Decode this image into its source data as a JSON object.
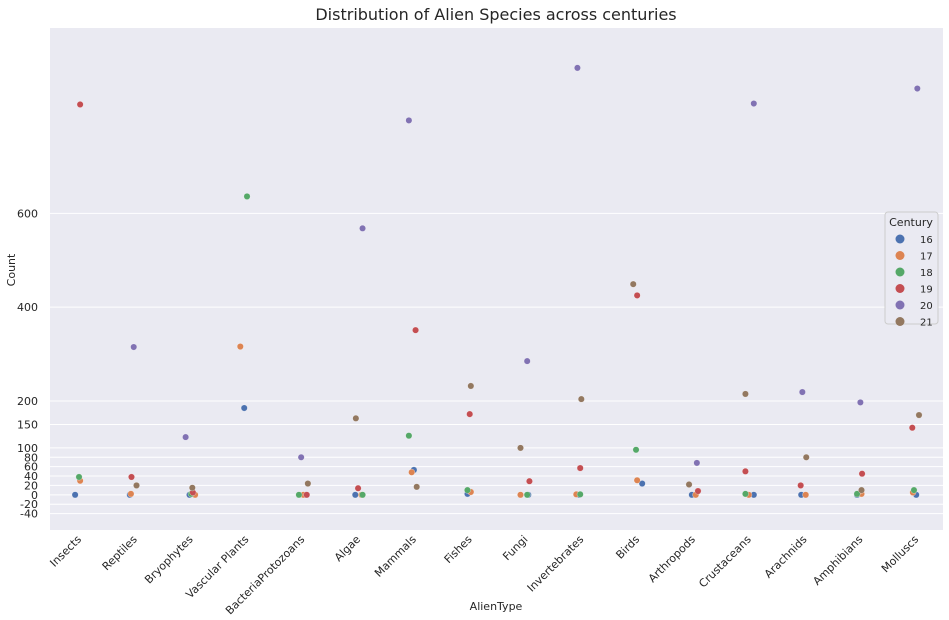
{
  "chart_data": {
    "type": "scatter",
    "title": "Distribution of Alien Species across centuries",
    "xlabel": "AlienType",
    "ylabel": "Count",
    "ylim": [
      -75,
      995
    ],
    "yticks": [
      -40,
      -20,
      0,
      20,
      40,
      60,
      80,
      100,
      150,
      200,
      400,
      600
    ],
    "grid": true,
    "categories": [
      "Insects",
      "Reptiles",
      "Bryophytes",
      "Vascular Plants",
      "BacteriaProtozoans",
      "Algae",
      "Mammals",
      "Fishes",
      "Fungi",
      "Invertebrates",
      "Birds",
      "Arthropods",
      "Crustaceans",
      "Arachnids",
      "Amphibians",
      "Molluscs"
    ],
    "legend": {
      "title": "Century",
      "placement": "right",
      "entries": [
        {
          "label": "16",
          "color": "#4c72b0"
        },
        {
          "label": "17",
          "color": "#dd8452"
        },
        {
          "label": "18",
          "color": "#55a868"
        },
        {
          "label": "19",
          "color": "#c44e52"
        },
        {
          "label": "20",
          "color": "#8172b3"
        },
        {
          "label": "21",
          "color": "#937860"
        }
      ]
    },
    "points": [
      {
        "cat": 0,
        "century": "16",
        "value": 0,
        "jitter": -0.05
      },
      {
        "cat": 0,
        "century": "17",
        "value": 30,
        "jitter": 0.04
      },
      {
        "cat": 0,
        "century": "18",
        "value": 38,
        "jitter": 0.02
      },
      {
        "cat": 0,
        "century": "19",
        "value": 832,
        "jitter": 0.04
      },
      {
        "cat": 1,
        "century": "16",
        "value": 0,
        "jitter": -0.07
      },
      {
        "cat": 1,
        "century": "17",
        "value": 2,
        "jitter": -0.05
      },
      {
        "cat": 1,
        "century": "19",
        "value": 38,
        "jitter": -0.04
      },
      {
        "cat": 1,
        "century": "20",
        "value": 315,
        "jitter": 0.0
      },
      {
        "cat": 1,
        "century": "21",
        "value": 20,
        "jitter": 0.05
      },
      {
        "cat": 2,
        "century": "16",
        "value": 0,
        "jitter": 0.0
      },
      {
        "cat": 2,
        "century": "17",
        "value": 0,
        "jitter": 0.1
      },
      {
        "cat": 2,
        "century": "18",
        "value": 2,
        "jitter": 0.03
      },
      {
        "cat": 2,
        "century": "19",
        "value": 5,
        "jitter": 0.06
      },
      {
        "cat": 2,
        "century": "20",
        "value": 123,
        "jitter": -0.07
      },
      {
        "cat": 2,
        "century": "21",
        "value": 15,
        "jitter": 0.05
      },
      {
        "cat": 3,
        "century": "16",
        "value": 185,
        "jitter": -0.02
      },
      {
        "cat": 3,
        "century": "17",
        "value": 316,
        "jitter": -0.09
      },
      {
        "cat": 3,
        "century": "18",
        "value": 636,
        "jitter": 0.03
      },
      {
        "cat": 4,
        "century": "16",
        "value": 0,
        "jitter": 0.08
      },
      {
        "cat": 4,
        "century": "17",
        "value": 0,
        "jitter": 0.04
      },
      {
        "cat": 4,
        "century": "18",
        "value": 0,
        "jitter": -0.04
      },
      {
        "cat": 4,
        "century": "19",
        "value": 0,
        "jitter": 0.1
      },
      {
        "cat": 4,
        "century": "20",
        "value": 80,
        "jitter": 0.0
      },
      {
        "cat": 4,
        "century": "21",
        "value": 24,
        "jitter": 0.12
      },
      {
        "cat": 5,
        "century": "16",
        "value": 0,
        "jitter": -0.03
      },
      {
        "cat": 5,
        "century": "17",
        "value": 0,
        "jitter": 0.08
      },
      {
        "cat": 5,
        "century": "18",
        "value": 0,
        "jitter": 0.1
      },
      {
        "cat": 5,
        "century": "19",
        "value": 14,
        "jitter": 0.02
      },
      {
        "cat": 5,
        "century": "20",
        "value": 568,
        "jitter": 0.1
      },
      {
        "cat": 5,
        "century": "21",
        "value": 163,
        "jitter": -0.02
      },
      {
        "cat": 6,
        "century": "16",
        "value": 53,
        "jitter": 0.02
      },
      {
        "cat": 6,
        "century": "17",
        "value": 48,
        "jitter": -0.02
      },
      {
        "cat": 6,
        "century": "18",
        "value": 126,
        "jitter": -0.07
      },
      {
        "cat": 6,
        "century": "19",
        "value": 351,
        "jitter": 0.05
      },
      {
        "cat": 6,
        "century": "20",
        "value": 798,
        "jitter": -0.07
      },
      {
        "cat": 6,
        "century": "21",
        "value": 17,
        "jitter": 0.07
      },
      {
        "cat": 7,
        "century": "16",
        "value": 2,
        "jitter": -0.02
      },
      {
        "cat": 7,
        "century": "17",
        "value": 6,
        "jitter": 0.04
      },
      {
        "cat": 7,
        "century": "18",
        "value": 10,
        "jitter": -0.02
      },
      {
        "cat": 7,
        "century": "19",
        "value": 172,
        "jitter": 0.02
      },
      {
        "cat": 7,
        "century": "21",
        "value": 232,
        "jitter": 0.04
      },
      {
        "cat": 8,
        "century": "16",
        "value": 0,
        "jitter": 0.07
      },
      {
        "cat": 8,
        "century": "17",
        "value": 0,
        "jitter": -0.07
      },
      {
        "cat": 8,
        "century": "18",
        "value": 0,
        "jitter": 0.05
      },
      {
        "cat": 8,
        "century": "19",
        "value": 29,
        "jitter": 0.09
      },
      {
        "cat": 8,
        "century": "20",
        "value": 285,
        "jitter": 0.05
      },
      {
        "cat": 8,
        "century": "21",
        "value": 100,
        "jitter": -0.07
      },
      {
        "cat": 9,
        "century": "16",
        "value": 0,
        "jitter": -0.02
      },
      {
        "cat": 9,
        "century": "17",
        "value": 1,
        "jitter": -0.07
      },
      {
        "cat": 9,
        "century": "18",
        "value": 1,
        "jitter": 0.0
      },
      {
        "cat": 9,
        "century": "19",
        "value": 57,
        "jitter": 0.0
      },
      {
        "cat": 9,
        "century": "20",
        "value": 910,
        "jitter": -0.05
      },
      {
        "cat": 9,
        "century": "21",
        "value": 204,
        "jitter": 0.02
      },
      {
        "cat": 10,
        "century": "16",
        "value": 24,
        "jitter": 0.11
      },
      {
        "cat": 10,
        "century": "17",
        "value": 31,
        "jitter": 0.02
      },
      {
        "cat": 10,
        "century": "18",
        "value": 96,
        "jitter": 0.0
      },
      {
        "cat": 10,
        "century": "19",
        "value": 425,
        "jitter": 0.02
      },
      {
        "cat": 10,
        "century": "21",
        "value": 449,
        "jitter": -0.05
      },
      {
        "cat": 11,
        "century": "16",
        "value": 0,
        "jitter": 0.0
      },
      {
        "cat": 11,
        "century": "17",
        "value": 0,
        "jitter": 0.07
      },
      {
        "cat": 11,
        "century": "19",
        "value": 8,
        "jitter": 0.11
      },
      {
        "cat": 11,
        "century": "20",
        "value": 68,
        "jitter": 0.09
      },
      {
        "cat": 11,
        "century": "21",
        "value": 22,
        "jitter": -0.05
      },
      {
        "cat": 12,
        "century": "16",
        "value": 0,
        "jitter": 0.11
      },
      {
        "cat": 12,
        "century": "17",
        "value": 0,
        "jitter": 0.02
      },
      {
        "cat": 12,
        "century": "18",
        "value": 2,
        "jitter": -0.04
      },
      {
        "cat": 12,
        "century": "19",
        "value": 50,
        "jitter": -0.04
      },
      {
        "cat": 12,
        "century": "20",
        "value": 834,
        "jitter": 0.11
      },
      {
        "cat": 12,
        "century": "21",
        "value": 215,
        "jitter": -0.04
      },
      {
        "cat": 13,
        "century": "16",
        "value": 0,
        "jitter": -0.04
      },
      {
        "cat": 13,
        "century": "17",
        "value": 0,
        "jitter": 0.04
      },
      {
        "cat": 13,
        "century": "19",
        "value": 20,
        "jitter": -0.05
      },
      {
        "cat": 13,
        "century": "20",
        "value": 219,
        "jitter": -0.02
      },
      {
        "cat": 13,
        "century": "21",
        "value": 80,
        "jitter": 0.05
      },
      {
        "cat": 14,
        "century": "16",
        "value": 0,
        "jitter": -0.04
      },
      {
        "cat": 14,
        "century": "17",
        "value": 2,
        "jitter": 0.04
      },
      {
        "cat": 14,
        "century": "18",
        "value": 2,
        "jitter": -0.04
      },
      {
        "cat": 14,
        "century": "19",
        "value": 45,
        "jitter": 0.05
      },
      {
        "cat": 14,
        "century": "20",
        "value": 197,
        "jitter": 0.02
      },
      {
        "cat": 14,
        "century": "21",
        "value": 10,
        "jitter": 0.04
      },
      {
        "cat": 15,
        "century": "16",
        "value": 0,
        "jitter": 0.02
      },
      {
        "cat": 15,
        "century": "17",
        "value": 5,
        "jitter": -0.04
      },
      {
        "cat": 15,
        "century": "18",
        "value": 10,
        "jitter": -0.02
      },
      {
        "cat": 15,
        "century": "19",
        "value": 143,
        "jitter": -0.05
      },
      {
        "cat": 15,
        "century": "20",
        "value": 866,
        "jitter": 0.04
      },
      {
        "cat": 15,
        "century": "21",
        "value": 170,
        "jitter": 0.07
      }
    ]
  }
}
